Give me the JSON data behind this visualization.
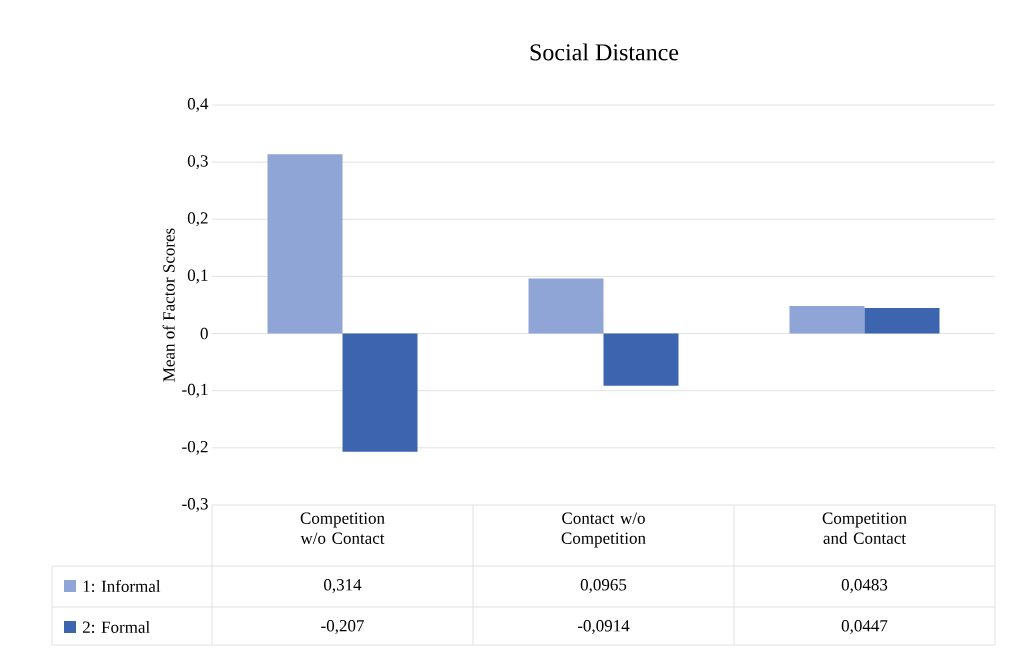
{
  "chart_data": {
    "type": "bar",
    "title": "Social Distance",
    "ylabel": "Mean of Factor Scores",
    "categories": [
      "Competition w/o Contact",
      "Contact w/o Competition",
      "Competition and Contact"
    ],
    "series": [
      {
        "name": "1: Informal",
        "color": "#8fa5d6",
        "values": [
          0.314,
          0.0965,
          0.0483
        ],
        "value_labels": [
          "0,314",
          "0,0965",
          "0,0483"
        ]
      },
      {
        "name": "2: Formal",
        "color": "#3d64ae",
        "values": [
          -0.207,
          -0.0914,
          0.0447
        ],
        "value_labels": [
          "-0,207",
          "-0,0914",
          "0,0447"
        ]
      }
    ],
    "ylim": [
      -0.3,
      0.4
    ],
    "yticks": [
      {
        "value": -0.3,
        "label": "-0,3"
      },
      {
        "value": -0.2,
        "label": "-0,2"
      },
      {
        "value": -0.1,
        "label": "-0,1"
      },
      0,
      {
        "value": 0.1,
        "label": "0,1"
      },
      {
        "value": 0.2,
        "label": "0,2"
      },
      {
        "value": 0.3,
        "label": "0,3"
      },
      {
        "value": 0.4,
        "label": "0,4"
      }
    ],
    "grid": "y",
    "legend": "bottom left"
  }
}
